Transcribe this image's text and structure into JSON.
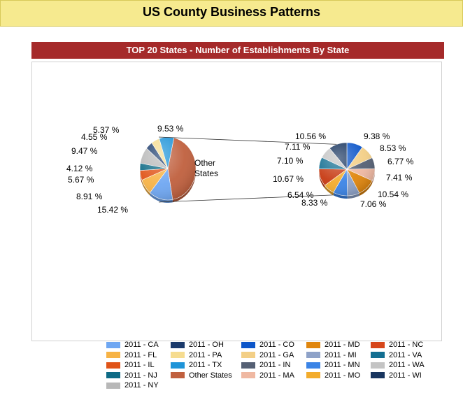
{
  "page": {
    "title": "US County Business Patterns"
  },
  "panel": {
    "title": "TOP 20 States - Number of Establishments By State"
  },
  "chart_data": {
    "type": "pie",
    "title": "TOP 20 States - Number of Establishments By State",
    "main_pie": {
      "slices": [
        {
          "name": "Other States",
          "label": "Other\nStates",
          "value": 49.1,
          "color": "#c0603e"
        },
        {
          "name": "2011 - CA",
          "label": "15.42 %",
          "value": 15.42,
          "color": "#6fa7f2"
        },
        {
          "name": "2011 - FL",
          "label": "8.91 %",
          "value": 8.91,
          "color": "#f7b346"
        },
        {
          "name": "2011 - IL",
          "label": "5.67 %",
          "value": 5.67,
          "color": "#e05418"
        },
        {
          "name": "2011 - NJ",
          "label": "4.12 %",
          "value": 4.12,
          "color": "#0e6b86"
        },
        {
          "name": "2011 - NY",
          "label": "9.47 %",
          "value": 9.47,
          "color": "#b8b8b8"
        },
        {
          "name": "2011 - OH",
          "label": "4.55 %",
          "value": 4.55,
          "color": "#1a3a6b"
        },
        {
          "name": "2011 - PA",
          "label": "5.37 %",
          "value": 5.37,
          "color": "#f6dc90"
        },
        {
          "name": "2011 - TX",
          "label": "9.53 %",
          "value": 9.53,
          "color": "#1f94d8"
        }
      ]
    },
    "detail_pie": {
      "slices": [
        {
          "name": "2011 - CO",
          "label": "9.38 %",
          "value": 9.38,
          "color": "#0d56c9"
        },
        {
          "name": "2011 - GA",
          "label": "8.53 %",
          "value": 8.53,
          "color": "#f3cf86"
        },
        {
          "name": "2011 - IN",
          "label": "6.77 %",
          "value": 6.77,
          "color": "#556074"
        },
        {
          "name": "2011 - MA",
          "label": "7.41 %",
          "value": 7.41,
          "color": "#efb8a2"
        },
        {
          "name": "2011 - MD",
          "label": "10.54 %",
          "value": 10.54,
          "color": "#e0860e"
        },
        {
          "name": "2011 - MI",
          "label": "7.06 %",
          "value": 7.06,
          "color": "#8ea2c8"
        },
        {
          "name": "2011 - MN",
          "label": "8.33 %",
          "value": 8.33,
          "color": "#3b84e6"
        },
        {
          "name": "2011 - MO",
          "label": "6.54 %",
          "value": 6.54,
          "color": "#f3ac2c"
        },
        {
          "name": "2011 - NC",
          "label": "10.67 %",
          "value": 10.67,
          "color": "#c73a12"
        },
        {
          "name": "2011 - VA",
          "label": "7.10 %",
          "value": 7.1,
          "color": "#136f92"
        },
        {
          "name": "2011 - WA",
          "label": "7.11 %",
          "value": 7.11,
          "color": "#c4c4c4"
        },
        {
          "name": "2011 - WI",
          "label": "10.56 %",
          "value": 10.56,
          "color": "#18355f"
        }
      ]
    },
    "legend": {
      "placement": "bottom",
      "columns": 5,
      "entries": [
        {
          "label": "2011 - CA",
          "color": "#6fa7f2"
        },
        {
          "label": "2011 - OH",
          "color": "#1a3a6b"
        },
        {
          "label": "2011 - CO",
          "color": "#0d56c9"
        },
        {
          "label": "2011 - MD",
          "color": "#e0860e"
        },
        {
          "label": "2011 - NC",
          "color": "#d6461a"
        },
        {
          "label": "2011 - FL",
          "color": "#f7b346"
        },
        {
          "label": "2011 - PA",
          "color": "#f6dc90"
        },
        {
          "label": "2011 - GA",
          "color": "#f3cf86"
        },
        {
          "label": "2011 - MI",
          "color": "#8ea2c8"
        },
        {
          "label": "2011 - VA",
          "color": "#136f92"
        },
        {
          "label": "2011 - IL",
          "color": "#e05418"
        },
        {
          "label": "2011 - TX",
          "color": "#1f94d8"
        },
        {
          "label": "2011 - IN",
          "color": "#556074"
        },
        {
          "label": "2011 - MN",
          "color": "#3b84e6"
        },
        {
          "label": "2011 - WA",
          "color": "#c4c4c4"
        },
        {
          "label": "2011 - NJ",
          "color": "#0e6b86"
        },
        {
          "label": "Other States",
          "color": "#c0603e"
        },
        {
          "label": "2011 - MA",
          "color": "#efb8a2"
        },
        {
          "label": "2011 - MO",
          "color": "#f3ac2c"
        },
        {
          "label": "2011 - WI",
          "color": "#18355f"
        },
        {
          "label": "2011 - NY",
          "color": "#b8b8b8"
        }
      ]
    }
  }
}
